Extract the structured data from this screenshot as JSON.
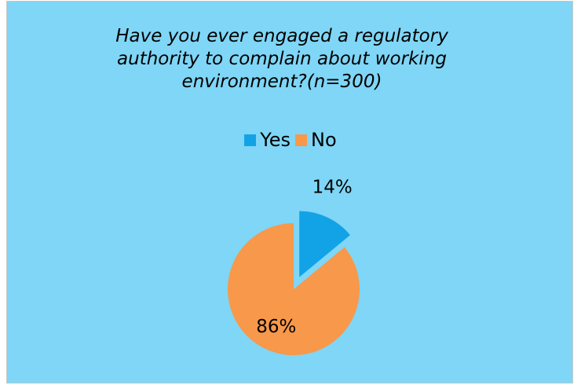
{
  "chart_data": {
    "type": "pie",
    "title": "Have you ever engaged a regulatory\nauthority to complain about working\nenvironment?(n=300)",
    "categories": [
      "Yes",
      "No"
    ],
    "values": [
      14,
      86
    ],
    "data_labels": [
      "14%",
      "86%"
    ],
    "colors": [
      "#12a3e6",
      "#f7984b"
    ],
    "exploded": "Yes",
    "legend": "top"
  }
}
